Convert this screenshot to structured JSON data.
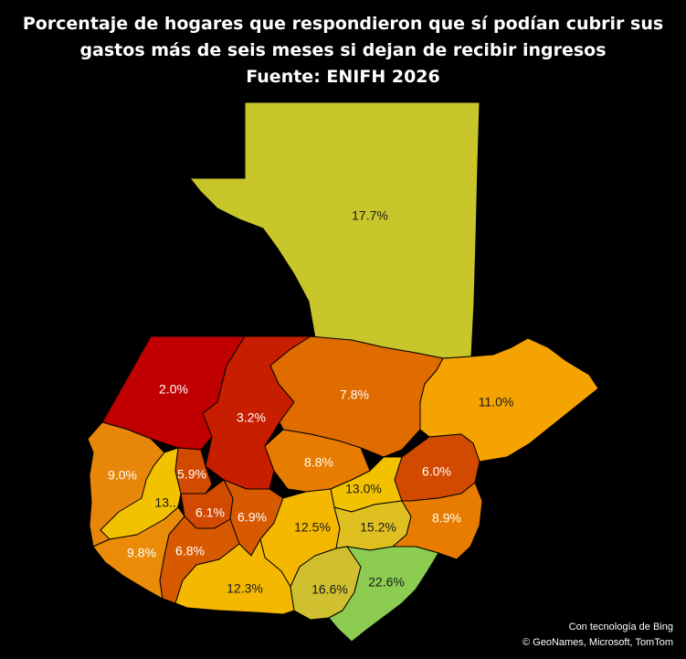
{
  "title": {
    "line1": "Porcentaje de hogares que respondieron que sí podían cubrir sus",
    "line2": "gastos más de seis meses si dejan de recibir ingresos",
    "line3": "Fuente: ENIFH 2026"
  },
  "chart_data": {
    "type": "choropleth",
    "regions": [
      {
        "id": "peten",
        "label": "17.7%",
        "value": 17.7,
        "color": "#c8c62a"
      },
      {
        "id": "huehuetenango",
        "label": "2.0%",
        "value": 2.0,
        "color": "#c00000"
      },
      {
        "id": "quiche",
        "label": "3.2%",
        "value": 3.2,
        "color": "#c81e00"
      },
      {
        "id": "alta-verapaz",
        "label": "7.8%",
        "value": 7.8,
        "color": "#e06c00"
      },
      {
        "id": "izabal",
        "label": "11.0%",
        "value": 11.0,
        "color": "#f5a300"
      },
      {
        "id": "san-marcos",
        "label": "9.0%",
        "value": 9.0,
        "color": "#e8860a"
      },
      {
        "id": "quetzaltenango",
        "label": "13....",
        "value": 13,
        "color": "#f2c200"
      },
      {
        "id": "totonicapan",
        "label": "5.9%",
        "value": 5.9,
        "color": "#d24a00"
      },
      {
        "id": "baja-verapaz",
        "label": "8.8%",
        "value": 8.8,
        "color": "#e87c00"
      },
      {
        "id": "el-progreso",
        "label": "13.0%",
        "value": 13.0,
        "color": "#f2c200"
      },
      {
        "id": "zacapa",
        "label": "6.0%",
        "value": 6.0,
        "color": "#d24a00"
      },
      {
        "id": "solola",
        "label": "6.1%",
        "value": 6.1,
        "color": "#d24a00"
      },
      {
        "id": "chimaltenango",
        "label": "6.9%",
        "value": 6.9,
        "color": "#d85a00"
      },
      {
        "id": "guatemala",
        "label": "12.5%",
        "value": 12.5,
        "color": "#f5b800"
      },
      {
        "id": "jalapa",
        "label": "15.2%",
        "value": 15.2,
        "color": "#e0c020"
      },
      {
        "id": "chiquimula",
        "label": "8.9%",
        "value": 8.9,
        "color": "#e87c00"
      },
      {
        "id": "retalhuleu",
        "label": "9.8%",
        "value": 9.8,
        "color": "#eb8c08"
      },
      {
        "id": "suchitepequez",
        "label": "6.8%",
        "value": 6.8,
        "color": "#d85a00"
      },
      {
        "id": "escuintla",
        "label": "12.3%",
        "value": 12.3,
        "color": "#f5b800"
      },
      {
        "id": "santa-rosa",
        "label": "16.6%",
        "value": 16.6,
        "color": "#d0c030"
      },
      {
        "id": "jutiapa",
        "label": "22.6%",
        "value": 22.6,
        "color": "#8ccc50"
      }
    ]
  },
  "credits": {
    "line1": "Con tecnología de Bing",
    "line2": "© GeoNames, Microsoft, TomTom"
  }
}
